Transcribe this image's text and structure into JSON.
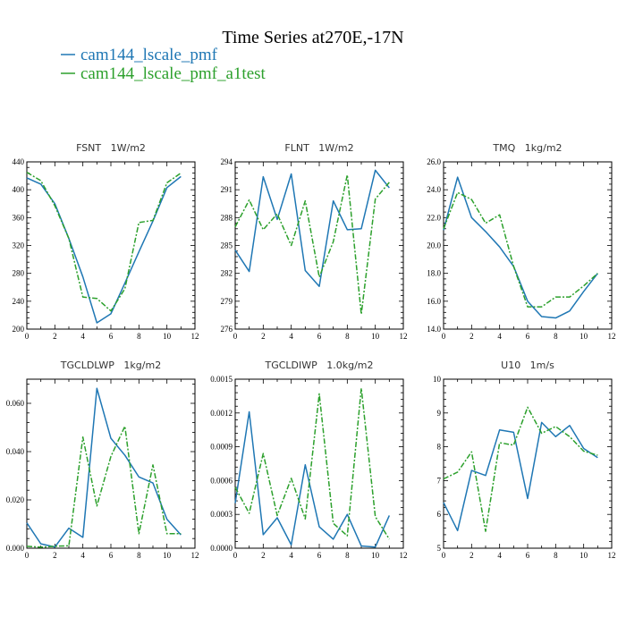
{
  "title": "Time Series at270E,-17N",
  "legend": [
    {
      "label": "cam144_lscale_pmf",
      "color": "#1f77b4"
    },
    {
      "label": "cam144_lscale_pmf_a1test",
      "color": "#2ca02c"
    }
  ],
  "chart_data": [
    {
      "type": "line",
      "title": "FSNT   1W/m2",
      "x": [
        0,
        1,
        2,
        3,
        4,
        5,
        6,
        7,
        8,
        9,
        10,
        11
      ],
      "xlim": [
        0,
        12
      ],
      "xticks": [
        "0",
        "2",
        "4",
        "6",
        "8",
        "10",
        "12"
      ],
      "ylim": [
        200,
        440
      ],
      "yticks": [
        "200",
        "240",
        "280",
        "320",
        "360",
        "400",
        "440"
      ],
      "series": [
        {
          "name": "cam144_lscale_pmf",
          "values": [
            417,
            408,
            380,
            330,
            275,
            209,
            222,
            266,
            311,
            355,
            403,
            419
          ]
        },
        {
          "name": "cam144_lscale_pmf_a1test",
          "values": [
            425,
            413,
            377,
            330,
            246,
            244,
            226,
            258,
            353,
            356,
            410,
            424
          ]
        }
      ]
    },
    {
      "type": "line",
      "title": "FLNT   1W/m2",
      "x": [
        0,
        1,
        2,
        3,
        4,
        5,
        6,
        7,
        8,
        9,
        10,
        11
      ],
      "xlim": [
        0,
        12
      ],
      "xticks": [
        "0",
        "2",
        "4",
        "6",
        "8",
        "10",
        "12"
      ],
      "ylim": [
        276,
        294
      ],
      "yticks": [
        "276",
        "279",
        "282",
        "285",
        "288",
        "291",
        "294"
      ],
      "series": [
        {
          "name": "cam144_lscale_pmf",
          "values": [
            284.5,
            282.2,
            292.4,
            287.8,
            292.7,
            282.3,
            280.6,
            289.8,
            286.7,
            286.8,
            293.1,
            291.2
          ]
        },
        {
          "name": "cam144_lscale_pmf_a1test",
          "values": [
            287.0,
            289.9,
            286.7,
            288.4,
            285.0,
            289.8,
            281.6,
            285.4,
            292.6,
            277.6,
            290.0,
            291.8
          ]
        }
      ]
    },
    {
      "type": "line",
      "title": "TMQ   1kg/m2",
      "x": [
        0,
        1,
        2,
        3,
        4,
        5,
        6,
        7,
        8,
        9,
        10,
        11
      ],
      "xlim": [
        0,
        12
      ],
      "xticks": [
        "0",
        "2",
        "4",
        "6",
        "8",
        "10",
        "12"
      ],
      "ylim": [
        14,
        26
      ],
      "yticks": [
        "14.0",
        "16.0",
        "18.0",
        "20.0",
        "22.0",
        "24.0",
        "26.0"
      ],
      "series": [
        {
          "name": "cam144_lscale_pmf",
          "values": [
            21.1,
            24.9,
            22.0,
            21.0,
            19.9,
            18.5,
            16.0,
            14.9,
            14.8,
            15.3,
            16.7,
            18.0
          ]
        },
        {
          "name": "cam144_lscale_pmf_a1test",
          "values": [
            21.2,
            23.8,
            23.3,
            21.6,
            22.2,
            18.5,
            15.6,
            15.6,
            16.3,
            16.3,
            17.1,
            18.0
          ]
        }
      ]
    },
    {
      "type": "line",
      "title": "TGCLDLWP   1kg/m2",
      "x": [
        0,
        1,
        2,
        3,
        4,
        5,
        6,
        7,
        8,
        9,
        10,
        11
      ],
      "xlim": [
        0,
        12
      ],
      "xticks": [
        "0",
        "2",
        "4",
        "6",
        "8",
        "10",
        "12"
      ],
      "ylim": [
        0,
        0.07
      ],
      "yticks": [
        "0.000",
        "0.020",
        "0.040",
        "0.060"
      ],
      "series": [
        {
          "name": "cam144_lscale_pmf",
          "values": [
            0.0105,
            0.0018,
            0.0005,
            0.0083,
            0.0045,
            0.0662,
            0.0455,
            0.0385,
            0.0295,
            0.027,
            0.012,
            0.0055
          ]
        },
        {
          "name": "cam144_lscale_pmf_a1test",
          "values": [
            0.0008,
            0.0004,
            0.0008,
            0.001,
            0.046,
            0.0175,
            0.038,
            0.0505,
            0.006,
            0.0345,
            0.006,
            0.006
          ]
        }
      ]
    },
    {
      "type": "line",
      "title": "TGCLDIWP   1.0kg/m2",
      "x": [
        0,
        1,
        2,
        3,
        4,
        5,
        6,
        7,
        8,
        9,
        10,
        11
      ],
      "xlim": [
        0,
        12
      ],
      "xticks": [
        "0",
        "2",
        "4",
        "6",
        "8",
        "10",
        "12"
      ],
      "ylim": [
        0,
        0.0015
      ],
      "yticks": [
        "0.0000",
        "0.0003",
        "0.0006",
        "0.0009",
        "0.0012",
        "0.0015"
      ],
      "series": [
        {
          "name": "cam144_lscale_pmf",
          "values": [
            0.0004,
            0.00121,
            0.00012,
            0.00027,
            3e-05,
            0.00074,
            0.00019,
            8e-05,
            0.0003,
            2e-05,
            1e-05,
            0.00029
          ]
        },
        {
          "name": "cam144_lscale_pmf_a1test",
          "values": [
            0.00054,
            0.00031,
            0.00084,
            0.00029,
            0.00062,
            0.00026,
            0.00137,
            0.00022,
            0.00011,
            0.00142,
            0.00028,
            8e-05
          ]
        }
      ]
    },
    {
      "type": "line",
      "title": "U10   1m/s",
      "x": [
        0,
        1,
        2,
        3,
        4,
        5,
        6,
        7,
        8,
        9,
        10,
        11
      ],
      "xlim": [
        0,
        12
      ],
      "xticks": [
        "0",
        "2",
        "4",
        "6",
        "8",
        "10",
        "12"
      ],
      "ylim": [
        5,
        10
      ],
      "yticks": [
        "5",
        "6",
        "7",
        "8",
        "9",
        "10"
      ],
      "series": [
        {
          "name": "cam144_lscale_pmf",
          "values": [
            6.35,
            5.52,
            7.3,
            7.15,
            8.5,
            8.43,
            6.47,
            8.72,
            8.3,
            8.63,
            7.95,
            7.68
          ]
        },
        {
          "name": "cam144_lscale_pmf_a1test",
          "values": [
            7.05,
            7.25,
            7.85,
            5.5,
            8.12,
            8.05,
            9.17,
            8.4,
            8.6,
            8.3,
            7.87,
            7.75
          ]
        }
      ]
    }
  ]
}
